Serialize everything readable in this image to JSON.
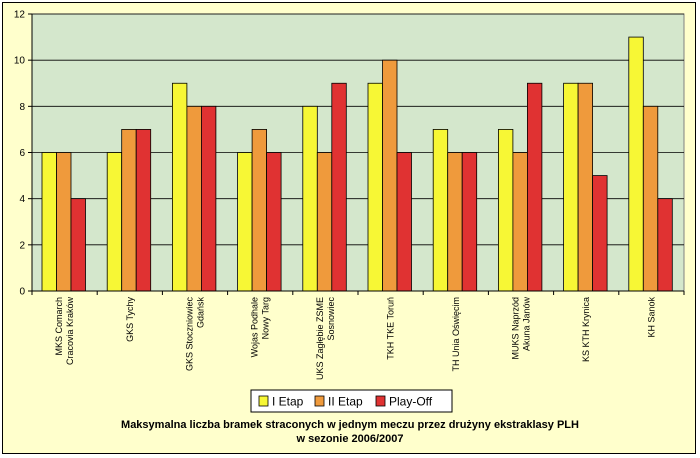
{
  "chart_data": {
    "type": "bar",
    "title": [
      "Maksymalna liczba bramek straconych w jednym meczu przez drużyny ekstraklasy PLH",
      "w sezonie 2006/2007"
    ],
    "categories": [
      [
        "MKS Comarch",
        "Cracovia Kraków"
      ],
      [
        "GKS Tychy"
      ],
      [
        "GKS Stoczniowiec",
        "Gdańsk"
      ],
      [
        "Wojas Podhale",
        "Nowy Targ"
      ],
      [
        "UKS Zagłębie ZSME",
        "Sosnowiec"
      ],
      [
        "TKH TKE Toruń"
      ],
      [
        "TH Unia Oświęcim"
      ],
      [
        "MUKS Naprzód",
        "Akuna Janów"
      ],
      [
        "KS KTH Krynica"
      ],
      [
        "KH Sanok"
      ]
    ],
    "series": [
      {
        "name": "I Etap",
        "color": "#f7f735",
        "values": [
          6,
          6,
          9,
          6,
          8,
          9,
          7,
          7,
          9,
          11
        ]
      },
      {
        "name": "II Etap",
        "color": "#ef9a3c",
        "values": [
          6,
          7,
          8,
          7,
          6,
          10,
          6,
          6,
          9,
          8
        ]
      },
      {
        "name": "Play-Off",
        "color": "#e03232",
        "values": [
          4,
          7,
          8,
          6,
          9,
          6,
          6,
          9,
          5,
          4
        ]
      }
    ],
    "ylim": [
      0,
      12
    ],
    "yticks": [
      0,
      2,
      4,
      6,
      8,
      10,
      12
    ],
    "grid": true,
    "legend": "bottom",
    "plot_background": "#d4e7cc"
  }
}
